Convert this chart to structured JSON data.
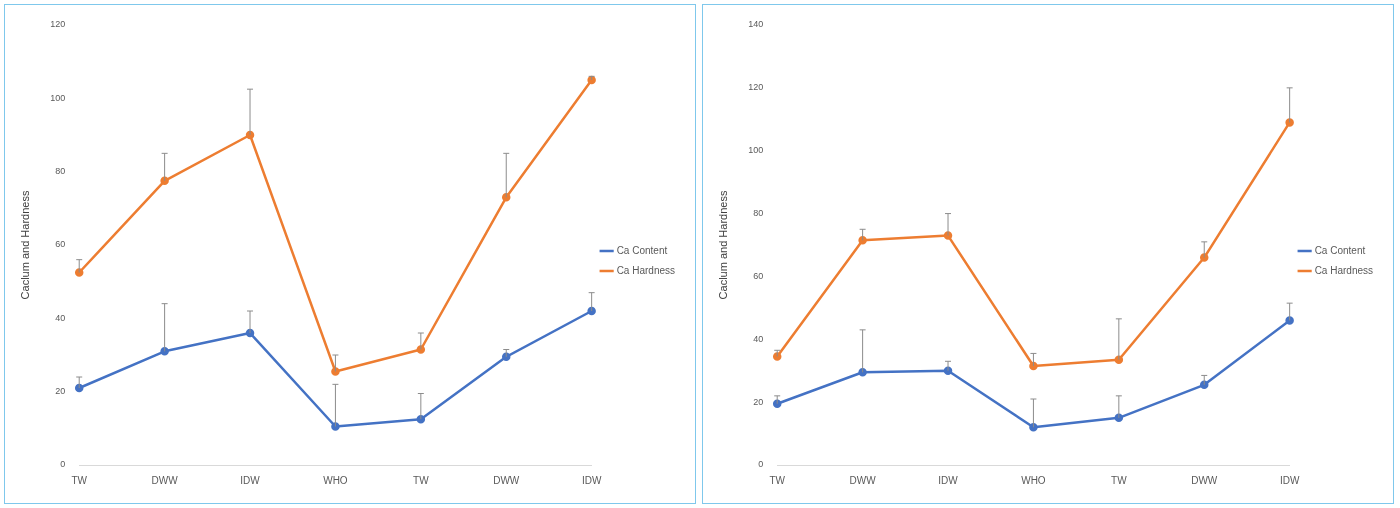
{
  "chart_data": [
    {
      "type": "line",
      "ylabel": "Caclum and Hardness",
      "categories": [
        "TW",
        "DWW",
        "IDW",
        "WHO",
        "TW",
        "DWW",
        "IDW"
      ],
      "ylim": [
        0,
        120
      ],
      "yticks": [
        0,
        20,
        40,
        60,
        80,
        100,
        120
      ],
      "grid": false,
      "legend": "right",
      "marker": "circle",
      "series": [
        {
          "name": "Ca Content",
          "color": "#4472c4",
          "values": [
            21,
            31,
            36,
            10.5,
            12.5,
            29.5,
            42
          ],
          "errors": [
            [
              21,
              24
            ],
            [
              31,
              44
            ],
            [
              36,
              42
            ],
            [
              10.5,
              22
            ],
            [
              12.5,
              19.5
            ],
            [
              29.5,
              31.5
            ],
            [
              42,
              47
            ]
          ]
        },
        {
          "name": "Ca Hardness",
          "color": "#ed7d31",
          "values": [
            52.5,
            77.5,
            90,
            25.5,
            31.5,
            73,
            105
          ],
          "errors": [
            [
              52.5,
              56
            ],
            [
              77.5,
              85
            ],
            [
              90,
              102.5
            ],
            [
              25.5,
              30
            ],
            [
              31.5,
              36
            ],
            [
              73,
              85
            ],
            [
              105,
              106
            ]
          ]
        }
      ]
    },
    {
      "type": "line",
      "ylabel": "Caclum and Hardness",
      "categories": [
        "TW",
        "DWW",
        "IDW",
        "WHO",
        "TW",
        "DWW",
        "IDW"
      ],
      "ylim": [
        0,
        140
      ],
      "yticks": [
        0,
        20,
        40,
        60,
        80,
        100,
        120,
        140
      ],
      "grid": false,
      "legend": "right",
      "marker": "circle",
      "series": [
        {
          "name": "Ca Content",
          "color": "#4472c4",
          "values": [
            19.5,
            29.5,
            30,
            12,
            15,
            25.5,
            46
          ],
          "errors": [
            [
              19.5,
              22
            ],
            [
              29.5,
              43
            ],
            [
              30,
              33
            ],
            [
              12,
              21
            ],
            [
              15,
              22
            ],
            [
              25.5,
              28.5
            ],
            [
              46,
              51.5
            ]
          ]
        },
        {
          "name": "Ca Hardness",
          "color": "#ed7d31",
          "values": [
            34.5,
            71.5,
            73,
            31.5,
            33.5,
            66,
            109
          ],
          "errors": [
            [
              34.5,
              36.5
            ],
            [
              71.5,
              75
            ],
            [
              73,
              80
            ],
            [
              31.5,
              35.5
            ],
            [
              33.5,
              46.5
            ],
            [
              66,
              71
            ],
            [
              109,
              120
            ]
          ]
        }
      ]
    }
  ]
}
